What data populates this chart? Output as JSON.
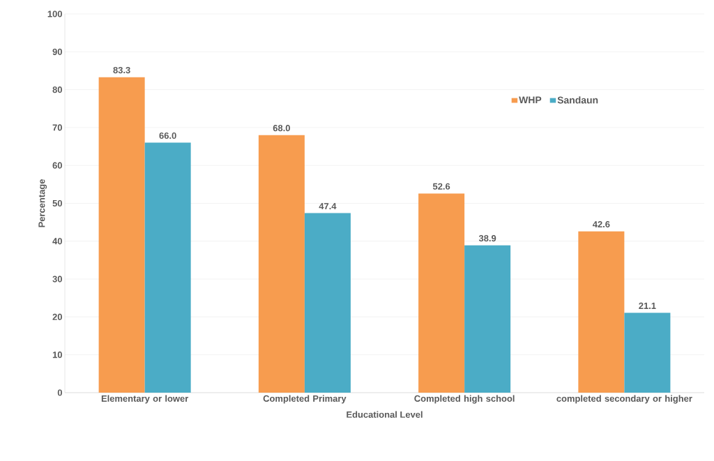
{
  "chart_data": {
    "type": "bar",
    "xlabel": "Educational Level",
    "ylabel": "Percentage",
    "categories": [
      "Elementary or lower",
      "Completed Primary",
      "Completed high school",
      "completed secondary or higher"
    ],
    "series": [
      {
        "name": "WHP",
        "color": "#f79c4f",
        "values": [
          83.3,
          68.0,
          52.6,
          42.6
        ],
        "value_labels": [
          "83.3",
          "68.0",
          "52.6",
          "42.6"
        ]
      },
      {
        "name": "Sandaun",
        "color": "#4bacc6",
        "values": [
          66.0,
          47.4,
          38.9,
          21.1
        ],
        "value_labels": [
          "66.0",
          "47.4",
          "38.9",
          "21.1"
        ]
      }
    ],
    "ylim": [
      0,
      100
    ],
    "yticks": [
      0,
      10,
      20,
      30,
      40,
      50,
      60,
      70,
      80,
      90,
      100
    ],
    "grid": "y",
    "legend": "top right"
  }
}
